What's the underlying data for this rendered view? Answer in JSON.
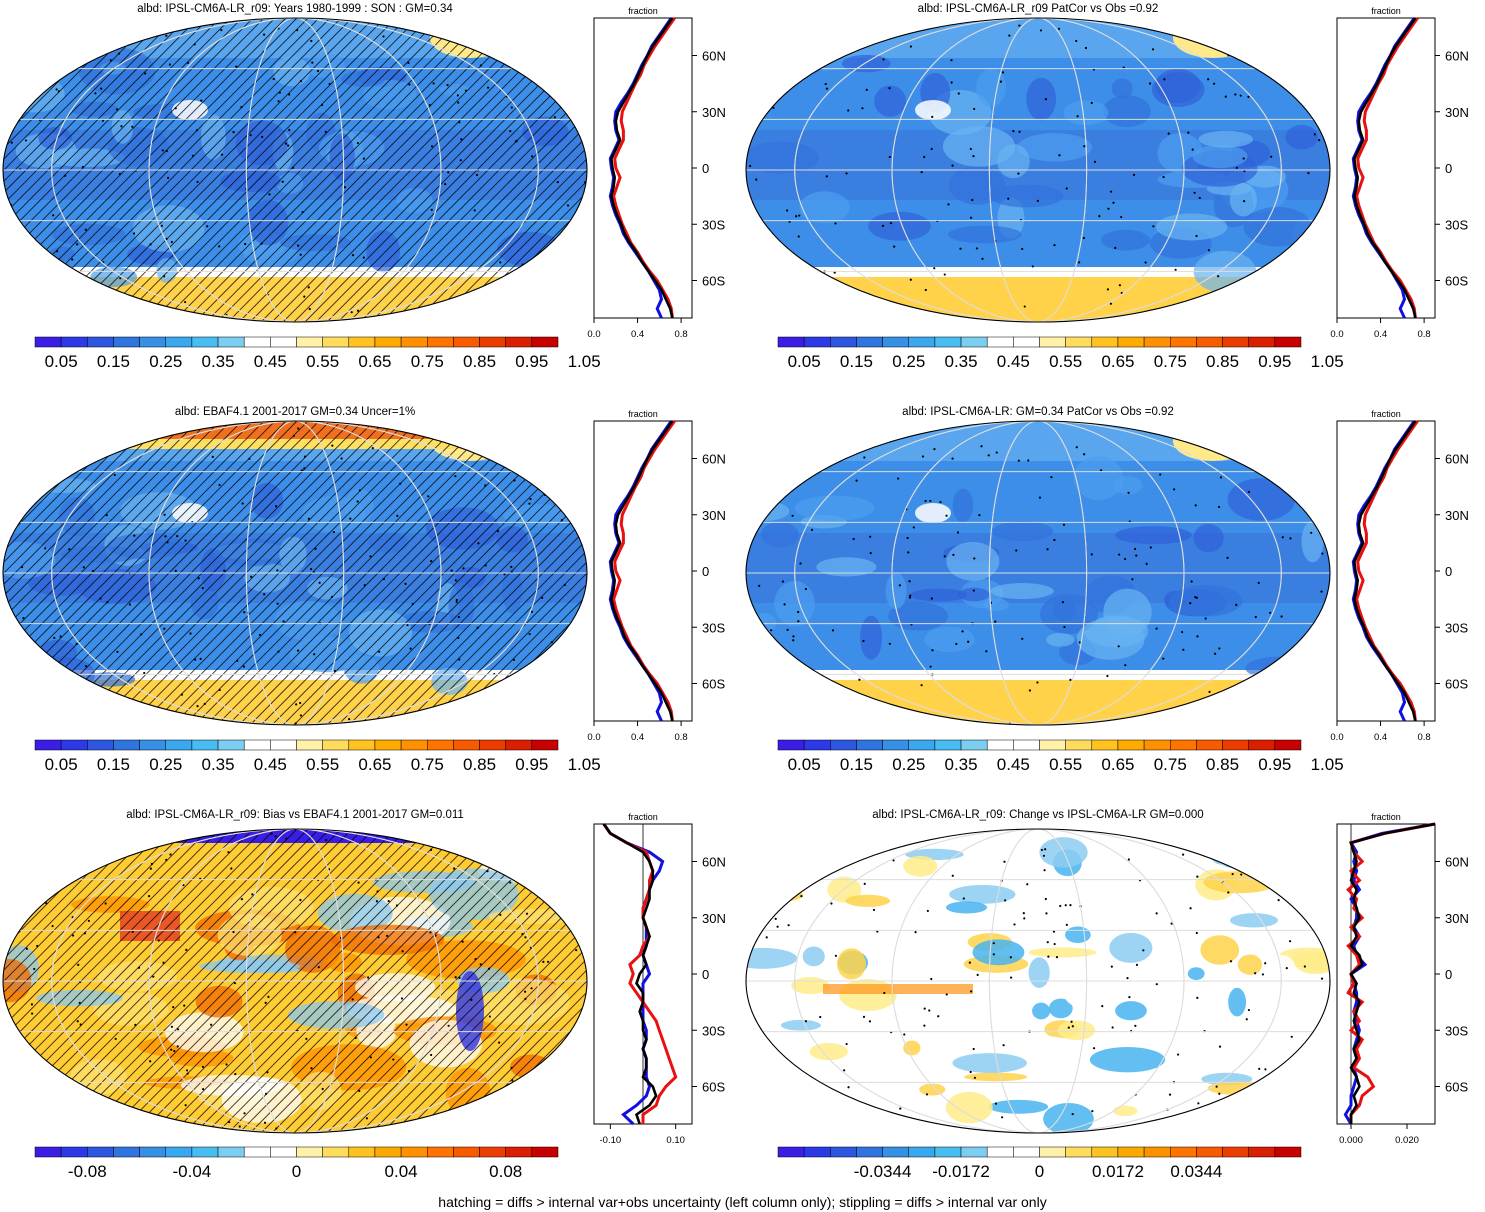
{
  "panels": [
    {
      "title": "albd: IPSL-CM6A-LR_r09: Years 1980-1999 : SON : GM=0.34"
    },
    {
      "title": "albd: IPSL-CM6A-LR_r09 PatCor vs Obs =0.92"
    },
    {
      "title": "albd: EBAF4.1 2001-2017 GM=0.34 Uncer=1%"
    },
    {
      "title": "albd: IPSL-CM6A-LR: GM=0.34 PatCor vs Obs =0.92"
    },
    {
      "title": "albd: IPSL-CM6A-LR_r09: Bias vs EBAF4.1 2001-2017  GM=0.011"
    },
    {
      "title": "albd: IPSL-CM6A-LR_r09: Change vs IPSL-CM6A-LR GM=0.000"
    }
  ],
  "footnote": "hatching = diffs > internal var+obs uncertainty (left column only); stippling = diffs > internal var only",
  "colors": {
    "abs_scale": [
      "#3a1ee6",
      "#2b3ae6",
      "#2d57e0",
      "#3074e0",
      "#3590e6",
      "#3aa8ee",
      "#48bdf2",
      "#7ccdf2",
      "#ffffff",
      "#ffffff",
      "#fff2a8",
      "#ffdc5c",
      "#ffc21e",
      "#ffaa00",
      "#ff9000",
      "#ff7400",
      "#f85a00",
      "#ec3c00",
      "#dc1e00",
      "#c80000"
    ],
    "diff_scale": [
      "#3a1ee6",
      "#2b3ae6",
      "#2d57e0",
      "#3074e0",
      "#3590e6",
      "#3aa8ee",
      "#48bdf2",
      "#7ccdf2",
      "#ffffff",
      "#ffffff",
      "#fff2a8",
      "#ffdc5c",
      "#ffc21e",
      "#ffaa00",
      "#ff9000",
      "#ff7400",
      "#f85a00",
      "#ec3c00",
      "#dc1e00",
      "#c80000"
    ],
    "series": {
      "model": "#000000",
      "obs": "#e81010",
      "ens": "#1010e0"
    }
  },
  "chart_data": [
    {
      "type": "heatmap",
      "title": "albd: IPSL-CM6A-LR_r09: Years 1980-1999 : SON : GM=0.34",
      "colorbar_labels": [
        "0.05",
        "0.15",
        "0.25",
        "0.35",
        "0.45",
        "0.55",
        "0.65",
        "0.75",
        "0.85",
        "0.95",
        "1.05"
      ],
      "profile": {
        "xlabel": "fraction",
        "xticks": [
          "0.0",
          "0.4",
          "0.8"
        ],
        "xlim": [
          0,
          0.9
        ],
        "yticks": [
          "60N",
          "30N",
          "0",
          "30S",
          "60S"
        ]
      }
    },
    {
      "type": "heatmap",
      "title": "albd: IPSL-CM6A-LR_r09 PatCor vs Obs =0.92",
      "colorbar_labels": [
        "0.05",
        "0.15",
        "0.25",
        "0.35",
        "0.45",
        "0.55",
        "0.65",
        "0.75",
        "0.85",
        "0.95",
        "1.05"
      ],
      "profile": {
        "xlabel": "fraction",
        "xticks": [
          "0.0",
          "0.4",
          "0.8"
        ],
        "xlim": [
          0,
          0.9
        ],
        "yticks": [
          "60N",
          "30N",
          "0",
          "30S",
          "60S"
        ]
      }
    },
    {
      "type": "heatmap",
      "title": "albd: EBAF4.1 2001-2017 GM=0.34 Uncer=1%",
      "colorbar_labels": [
        "0.05",
        "0.15",
        "0.25",
        "0.35",
        "0.45",
        "0.55",
        "0.65",
        "0.75",
        "0.85",
        "0.95",
        "1.05"
      ],
      "profile": {
        "xlabel": "fraction",
        "xticks": [
          "0.0",
          "0.4",
          "0.8"
        ],
        "xlim": [
          0,
          0.9
        ],
        "yticks": [
          "60N",
          "30N",
          "0",
          "30S",
          "60S"
        ]
      }
    },
    {
      "type": "heatmap",
      "title": "albd: IPSL-CM6A-LR: GM=0.34 PatCor vs Obs =0.92",
      "colorbar_labels": [
        "0.05",
        "0.15",
        "0.25",
        "0.35",
        "0.45",
        "0.55",
        "0.65",
        "0.75",
        "0.85",
        "0.95",
        "1.05"
      ],
      "profile": {
        "xlabel": "fraction",
        "xticks": [
          "0.0",
          "0.4",
          "0.8"
        ],
        "xlim": [
          0,
          0.9
        ],
        "yticks": [
          "60N",
          "30N",
          "0",
          "30S",
          "60S"
        ]
      }
    },
    {
      "type": "heatmap",
      "title": "albd: IPSL-CM6A-LR_r09: Bias vs EBAF4.1 2001-2017  GM=0.011",
      "colorbar_labels": [
        "-0.08",
        "-0.04",
        "0",
        "0.04",
        "0.08"
      ],
      "profile": {
        "xlabel": "fraction",
        "xticks": [
          "-0.10",
          "0.10"
        ],
        "xlim": [
          -0.15,
          0.15
        ],
        "yticks": [
          "60N",
          "30N",
          "0",
          "30S",
          "60S"
        ]
      }
    },
    {
      "type": "heatmap",
      "title": "albd: IPSL-CM6A-LR_r09: Change vs IPSL-CM6A-LR GM=0.000",
      "colorbar_labels": [
        "-0.0344",
        "-0.0172",
        "0",
        "0.0172",
        "0.0344"
      ],
      "profile": {
        "xlabel": "fraction",
        "xticks": [
          "0.000",
          "0.020"
        ],
        "xlim": [
          -0.005,
          0.03
        ],
        "yticks": [
          "60N",
          "30N",
          "0",
          "30S",
          "60S"
        ]
      }
    }
  ],
  "profiles": {
    "lat": [
      80,
      75,
      70,
      65,
      60,
      55,
      50,
      45,
      40,
      35,
      30,
      25,
      20,
      15,
      10,
      5,
      0,
      -5,
      -10,
      -15,
      -20,
      -25,
      -30,
      -35,
      -40,
      -45,
      -50,
      -55,
      -60,
      -65,
      -70,
      -75,
      -80
    ],
    "abs_model": [
      0.72,
      0.66,
      0.6,
      0.54,
      0.49,
      0.45,
      0.41,
      0.37,
      0.32,
      0.27,
      0.22,
      0.2,
      0.21,
      0.24,
      0.2,
      0.16,
      0.17,
      0.19,
      0.18,
      0.16,
      0.18,
      0.21,
      0.25,
      0.28,
      0.33,
      0.39,
      0.44,
      0.5,
      0.56,
      0.62,
      0.66,
      0.7,
      0.72
    ],
    "abs_obs": [
      0.74,
      0.68,
      0.62,
      0.56,
      0.51,
      0.46,
      0.43,
      0.38,
      0.34,
      0.3,
      0.26,
      0.25,
      0.27,
      0.27,
      0.23,
      0.19,
      0.2,
      0.24,
      0.21,
      0.18,
      0.2,
      0.23,
      0.26,
      0.3,
      0.34,
      0.4,
      0.45,
      0.51,
      0.58,
      0.63,
      0.68,
      0.71,
      0.72
    ],
    "abs_ens": [
      0.71,
      0.65,
      0.59,
      0.53,
      0.49,
      0.44,
      0.4,
      0.36,
      0.31,
      0.25,
      0.2,
      0.19,
      0.2,
      0.23,
      0.19,
      0.15,
      0.16,
      0.18,
      0.17,
      0.15,
      0.17,
      0.2,
      0.24,
      0.27,
      0.32,
      0.38,
      0.44,
      0.5,
      0.55,
      0.6,
      0.62,
      0.58,
      0.62
    ],
    "bias_model": [
      -0.12,
      -0.1,
      -0.05,
      0.0,
      0.02,
      0.03,
      0.03,
      0.02,
      0.02,
      0.01,
      0.0,
      0.01,
      0.02,
      0.01,
      0.0,
      0.01,
      -0.01,
      -0.02,
      0.0,
      0.0,
      -0.01,
      0.0,
      0.0,
      0.01,
      0.0,
      0.01,
      0.01,
      0.0,
      0.03,
      0.04,
      0.02,
      -0.02,
      -0.01
    ],
    "bias_obs": [
      -0.12,
      -0.1,
      -0.05,
      0.01,
      0.02,
      0.03,
      0.02,
      0.02,
      0.01,
      0.0,
      0.0,
      0.01,
      0.02,
      0.0,
      -0.01,
      -0.04,
      -0.03,
      -0.04,
      -0.02,
      0.0,
      0.02,
      0.04,
      0.05,
      0.06,
      0.07,
      0.08,
      0.09,
      0.1,
      0.07,
      0.05,
      0.04,
      0.0,
      0.0
    ],
    "bias_ens": [
      -0.12,
      -0.1,
      -0.05,
      0.02,
      0.06,
      0.05,
      0.03,
      0.02,
      0.01,
      0.0,
      0.0,
      0.01,
      0.01,
      0.01,
      0.0,
      0.01,
      0.02,
      0.0,
      0.0,
      0.0,
      0.0,
      0.0,
      0.01,
      0.01,
      0.0,
      0.01,
      0.01,
      0.01,
      0.02,
      0.01,
      -0.02,
      -0.06,
      -0.03
    ],
    "chg_model": [
      0.03,
      0.012,
      0.0,
      0.001,
      0.002,
      0.001,
      0.0,
      0.002,
      0.001,
      0.002,
      0.003,
      0.001,
      0.002,
      0.0,
      0.003,
      0.004,
      0.0,
      0.002,
      0.001,
      0.003,
      0.002,
      0.001,
      0.002,
      0.003,
      0.001,
      0.002,
      0.0,
      0.002,
      0.003,
      0.001,
      0.002,
      0.0,
      0.0
    ],
    "chg_obs": [
      0.03,
      0.012,
      0.0,
      0.001,
      0.004,
      0.0,
      0.003,
      -0.001,
      0.002,
      0.001,
      0.004,
      0.0,
      0.003,
      -0.001,
      0.002,
      0.003,
      0.0,
      0.001,
      -0.001,
      0.004,
      0.001,
      0.003,
      0.0,
      0.004,
      0.002,
      0.003,
      0.001,
      0.006,
      0.008,
      0.004,
      0.003,
      0.0,
      0.0
    ],
    "chg_ens": [
      0.03,
      0.011,
      0.0,
      0.002,
      0.001,
      0.002,
      0.001,
      0.003,
      0.0,
      0.002,
      0.002,
      0.001,
      0.003,
      0.001,
      0.002,
      0.005,
      0.0,
      0.001,
      0.002,
      0.002,
      0.001,
      0.002,
      0.003,
      0.002,
      0.001,
      0.002,
      0.001,
      0.002,
      0.001,
      0.0,
      0.0,
      -0.002,
      0.0
    ]
  }
}
